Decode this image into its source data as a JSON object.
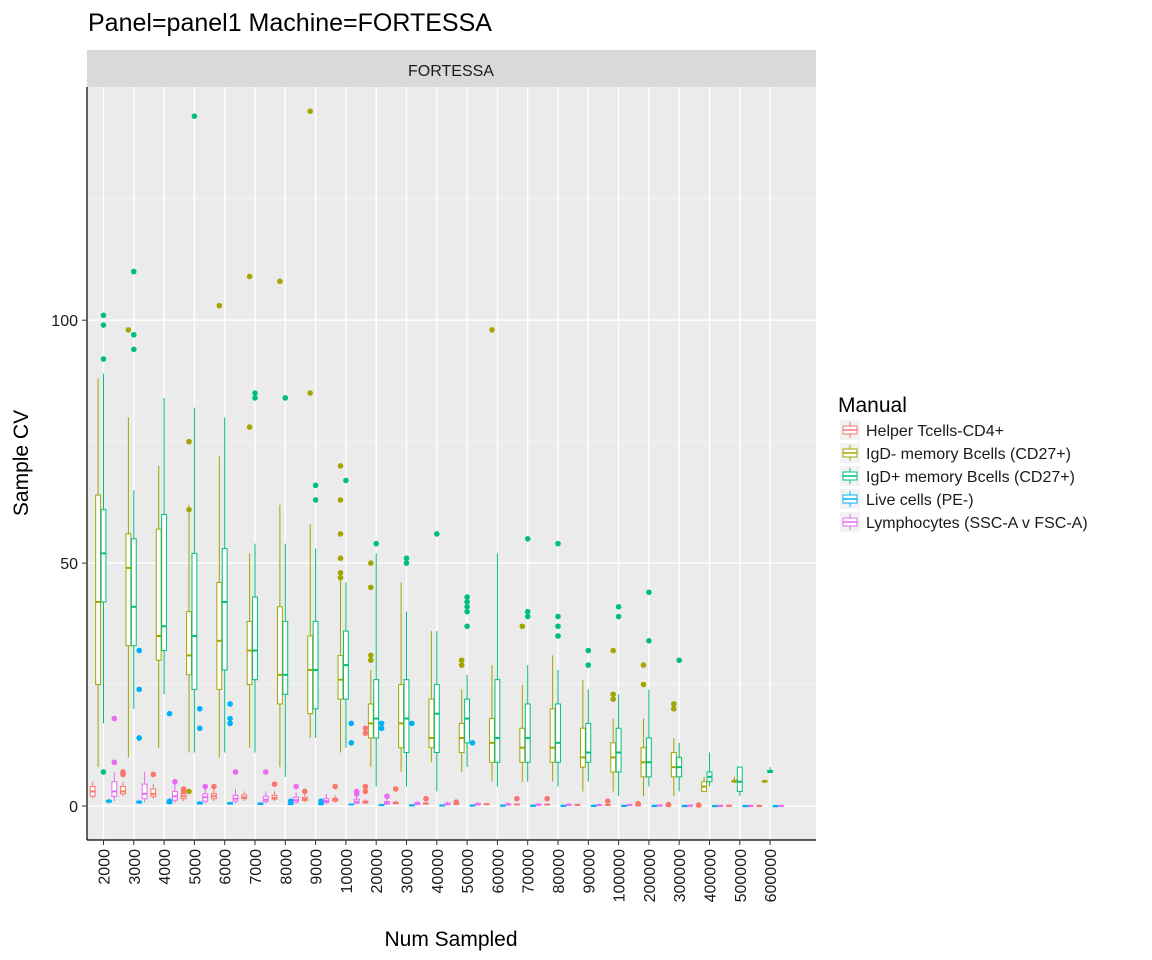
{
  "chart_data": {
    "type": "boxplot",
    "title": "Panel=panel1 Machine=FORTESSA",
    "facet_label": "FORTESSA",
    "xlabel": "Num Sampled",
    "ylabel": "Sample CV",
    "y_ticks": [
      0,
      50,
      100
    ],
    "ylim": [
      -7,
      148
    ],
    "grid": true,
    "legend_position": "right",
    "legend_title": "Manual",
    "categories": [
      "2000",
      "3000",
      "4000",
      "5000",
      "6000",
      "7000",
      "8000",
      "9000",
      "10000",
      "20000",
      "30000",
      "40000",
      "50000",
      "60000",
      "70000",
      "80000",
      "90000",
      "100000",
      "200000",
      "300000",
      "400000",
      "500000",
      "600000"
    ],
    "series": [
      {
        "name": "Helper Tcells-CD4+",
        "color": "#F8766D",
        "boxes": [
          [
            1.5,
            2,
            3,
            4,
            5
          ],
          [
            2,
            2.5,
            3,
            4,
            5
          ],
          [
            1.5,
            2,
            2.5,
            3.5,
            4.5
          ],
          [
            1,
            1.5,
            2,
            2.5,
            3.5
          ],
          [
            1,
            1.5,
            2,
            2.5,
            3.5
          ],
          [
            1,
            1.5,
            1.8,
            2.3,
            3
          ],
          [
            1,
            1.4,
            1.7,
            2.2,
            3
          ],
          [
            0.8,
            1.1,
            1.4,
            1.8,
            2.5
          ],
          [
            0.7,
            1,
            1.3,
            1.6,
            2.2
          ],
          [
            0.4,
            0.6,
            0.8,
            1,
            1.4
          ],
          [
            0.3,
            0.5,
            0.6,
            0.8,
            1.1
          ],
          [
            0.3,
            0.4,
            0.5,
            0.6,
            0.9
          ],
          [
            0.2,
            0.3,
            0.4,
            0.5,
            0.7
          ],
          [
            0.2,
            0.3,
            0.35,
            0.45,
            0.6
          ],
          [
            0.2,
            0.25,
            0.3,
            0.4,
            0.5
          ],
          [
            0.15,
            0.2,
            0.3,
            0.35,
            0.5
          ],
          [
            0.1,
            0.2,
            0.25,
            0.3,
            0.4
          ],
          [
            0.1,
            0.15,
            0.2,
            0.3,
            0.4
          ],
          [
            0.05,
            0.1,
            0.15,
            0.2,
            0.3
          ],
          [
            0.05,
            0.1,
            0.12,
            0.15,
            0.2
          ],
          [
            0.03,
            0.06,
            0.1,
            0.12,
            0.15
          ],
          [
            0.02,
            0.05,
            0.07,
            0.1,
            0.12
          ],
          [
            0.02,
            0.04,
            0.05,
            0.07,
            0.1
          ]
        ],
        "outliers": [
          [],
          [
            6.5,
            7
          ],
          [
            6.5
          ],
          [
            3,
            3.5
          ],
          [
            4
          ],
          [],
          [
            4.5
          ],
          [
            3
          ],
          [
            4
          ],
          [
            16,
            15,
            4,
            3
          ],
          [
            3.5
          ],
          [
            1.5
          ],
          [
            0.8
          ],
          [],
          [
            1.5
          ],
          [
            1.5
          ],
          [],
          [
            1
          ],
          [
            0.5
          ],
          [
            0.3
          ],
          [
            0.2
          ],
          [],
          []
        ]
      },
      {
        "name": "IgD- memory Bcells (CD27+)",
        "color": "#A3A500",
        "boxes": [
          [
            8,
            25,
            42,
            64,
            88
          ],
          [
            10,
            33,
            49,
            56,
            80
          ],
          [
            12,
            30,
            35,
            57,
            70
          ],
          [
            11,
            27,
            31,
            40,
            62
          ],
          [
            10,
            24,
            34,
            46,
            72
          ],
          [
            12,
            25,
            32,
            38,
            52
          ],
          [
            8,
            21,
            27,
            41,
            62
          ],
          [
            14,
            19,
            28,
            35,
            58
          ],
          [
            11,
            22,
            26,
            31,
            47
          ],
          [
            8,
            14,
            17,
            21,
            28
          ],
          [
            7,
            12,
            17,
            25,
            46
          ],
          [
            9,
            12,
            14,
            22,
            36
          ],
          [
            7,
            11,
            14,
            17,
            24
          ],
          [
            5,
            9,
            13,
            18,
            29
          ],
          [
            5,
            9,
            12,
            16,
            25
          ],
          [
            5,
            9,
            12,
            20,
            31
          ],
          [
            3,
            8,
            10,
            16,
            26
          ],
          [
            3,
            7,
            10,
            13,
            18
          ],
          [
            2,
            6,
            9,
            12,
            18
          ],
          [
            2,
            6,
            8,
            11,
            14
          ],
          [
            3,
            3,
            4,
            5,
            6
          ],
          [
            5,
            5,
            5,
            5.3,
            6
          ],
          [
            5,
            5,
            5,
            5.2,
            5.5
          ]
        ],
        "outliers": [
          [],
          [
            98
          ],
          [],
          [
            75,
            61,
            3
          ],
          [
            103
          ],
          [
            109,
            78
          ],
          [
            108
          ],
          [
            143,
            85
          ],
          [
            70,
            63,
            56,
            51,
            48,
            47
          ],
          [
            50,
            45,
            31,
            30
          ],
          [],
          [],
          [
            30,
            29
          ],
          [
            98
          ],
          [
            37
          ],
          [],
          [],
          [
            32,
            23,
            22
          ],
          [
            29,
            25
          ],
          [
            21,
            20
          ],
          [],
          [],
          []
        ]
      },
      {
        "name": "IgD+ memory Bcells (CD27+)",
        "color": "#00BF7D",
        "boxes": [
          [
            17,
            42,
            52,
            61,
            89
          ],
          [
            20,
            33,
            41,
            55,
            65
          ],
          [
            23,
            32,
            37,
            60,
            84
          ],
          [
            11,
            24,
            35,
            52,
            82
          ],
          [
            11,
            28,
            42,
            53,
            80
          ],
          [
            11,
            26,
            32,
            43,
            54
          ],
          [
            6,
            23,
            27,
            38,
            54
          ],
          [
            14,
            20,
            28,
            38,
            53
          ],
          [
            12,
            22,
            29,
            36,
            46
          ],
          [
            4,
            14,
            18,
            26,
            52
          ],
          [
            4,
            11,
            18,
            26,
            40
          ],
          [
            3,
            11,
            19,
            25,
            36
          ],
          [
            8,
            13,
            18,
            22,
            27
          ],
          [
            4,
            9,
            14,
            26,
            52
          ],
          [
            5,
            9,
            14,
            21,
            29
          ],
          [
            4,
            9,
            13,
            21,
            28
          ],
          [
            5,
            9,
            11,
            17,
            24
          ],
          [
            2,
            7,
            11,
            16,
            23
          ],
          [
            4,
            6,
            9,
            14,
            24
          ],
          [
            3,
            6,
            8,
            10,
            13
          ],
          [
            4,
            5,
            6,
            7,
            11
          ],
          [
            2,
            3,
            5,
            8,
            8
          ],
          [
            7,
            7,
            7,
            7.3,
            8
          ]
        ],
        "outliers": [
          [
            101,
            99,
            92,
            7
          ],
          [
            110,
            97,
            94
          ],
          [],
          [
            142
          ],
          [],
          [
            85,
            84
          ],
          [
            84
          ],
          [
            66,
            63
          ],
          [
            67
          ],
          [
            54
          ],
          [
            51,
            50
          ],
          [
            56
          ],
          [
            43,
            42,
            41,
            40,
            37
          ],
          [],
          [
            55,
            40,
            39
          ],
          [
            54,
            39,
            37,
            35
          ],
          [
            32,
            29
          ],
          [
            41,
            39
          ],
          [
            44,
            34
          ],
          [
            30
          ],
          [],
          [],
          []
        ]
      },
      {
        "name": "Live cells (PE-)",
        "color": "#00B0F6",
        "boxes": [
          [
            0.5,
            0.8,
            1,
            1.2,
            1.5
          ],
          [
            0.4,
            0.6,
            0.8,
            1,
            1.2
          ],
          [
            0.3,
            0.5,
            0.7,
            0.9,
            1.1
          ],
          [
            0.3,
            0.4,
            0.6,
            0.8,
            1
          ],
          [
            0.3,
            0.4,
            0.5,
            0.7,
            0.9
          ],
          [
            0.2,
            0.3,
            0.45,
            0.6,
            0.8
          ],
          [
            0.2,
            0.3,
            0.4,
            0.5,
            0.7
          ],
          [
            0.2,
            0.3,
            0.35,
            0.45,
            0.6
          ],
          [
            0.15,
            0.25,
            0.3,
            0.4,
            0.5
          ],
          [
            0.1,
            0.15,
            0.2,
            0.25,
            0.35
          ],
          [
            0.08,
            0.12,
            0.16,
            0.2,
            0.3
          ],
          [
            0.06,
            0.1,
            0.13,
            0.17,
            0.25
          ],
          [
            0.05,
            0.08,
            0.11,
            0.14,
            0.2
          ],
          [
            0.04,
            0.07,
            0.1,
            0.12,
            0.18
          ],
          [
            0.03,
            0.06,
            0.08,
            0.1,
            0.15
          ],
          [
            0.03,
            0.05,
            0.07,
            0.09,
            0.13
          ],
          [
            0.02,
            0.04,
            0.06,
            0.08,
            0.11
          ],
          [
            0.02,
            0.03,
            0.05,
            0.07,
            0.1
          ],
          [
            0.01,
            0.02,
            0.04,
            0.05,
            0.08
          ],
          [
            0.01,
            0.02,
            0.03,
            0.04,
            0.06
          ],
          [
            0.01,
            0.015,
            0.02,
            0.03,
            0.05
          ],
          [
            0.005,
            0.01,
            0.015,
            0.02,
            0.04
          ],
          [
            0.005,
            0.01,
            0.012,
            0.015,
            0.03
          ]
        ],
        "outliers": [
          [],
          [
            32,
            24,
            14
          ],
          [
            19,
            1
          ],
          [
            20,
            16
          ],
          [
            21,
            18,
            17
          ],
          [],
          [
            1
          ],
          [
            1
          ],
          [
            17,
            13
          ],
          [
            17,
            16
          ],
          [
            17
          ],
          [],
          [
            13
          ],
          [],
          [],
          [],
          [],
          [],
          [],
          [],
          [],
          [],
          []
        ]
      },
      {
        "name": "Lymphocytes (SSC-A v FSC-A)",
        "color": "#E76BF3",
        "boxes": [
          [
            1,
            2,
            3,
            5,
            7
          ],
          [
            0.8,
            1.5,
            2.5,
            4.5,
            7
          ],
          [
            0.7,
            1.2,
            2,
            3,
            5
          ],
          [
            0.6,
            1,
            1.8,
            2.5,
            4
          ],
          [
            0.5,
            1,
            1.5,
            2.2,
            3.5
          ],
          [
            0.5,
            0.9,
            1.3,
            2,
            3
          ],
          [
            0.4,
            0.8,
            1.2,
            1.8,
            2.8
          ],
          [
            0.4,
            0.7,
            1,
            1.5,
            2.5
          ],
          [
            0.3,
            0.6,
            0.9,
            1.4,
            2.2
          ],
          [
            0.2,
            0.4,
            0.6,
            0.9,
            1.4
          ],
          [
            0.15,
            0.3,
            0.5,
            0.7,
            1.1
          ],
          [
            0.1,
            0.25,
            0.4,
            0.6,
            0.9
          ],
          [
            0.1,
            0.2,
            0.35,
            0.5,
            0.8
          ],
          [
            0.08,
            0.18,
            0.3,
            0.45,
            0.7
          ],
          [
            0.07,
            0.15,
            0.25,
            0.4,
            0.6
          ],
          [
            0.06,
            0.13,
            0.22,
            0.35,
            0.55
          ],
          [
            0.05,
            0.12,
            0.2,
            0.3,
            0.5
          ],
          [
            0.05,
            0.1,
            0.18,
            0.28,
            0.45
          ],
          [
            0.03,
            0.07,
            0.12,
            0.18,
            0.3
          ],
          [
            0.02,
            0.05,
            0.08,
            0.12,
            0.2
          ],
          [
            0.02,
            0.04,
            0.06,
            0.09,
            0.15
          ],
          [
            0.01,
            0.03,
            0.05,
            0.07,
            0.12
          ],
          [
            0.01,
            0.02,
            0.04,
            0.06,
            0.1
          ]
        ],
        "outliers": [
          [
            18,
            9
          ],
          [],
          [
            5
          ],
          [
            4
          ],
          [
            7
          ],
          [
            7
          ],
          [
            4
          ],
          [],
          [
            3,
            2.5
          ],
          [
            2
          ],
          [],
          [],
          [],
          [],
          [],
          [],
          [],
          [],
          [],
          [],
          [],
          [],
          []
        ]
      }
    ]
  }
}
